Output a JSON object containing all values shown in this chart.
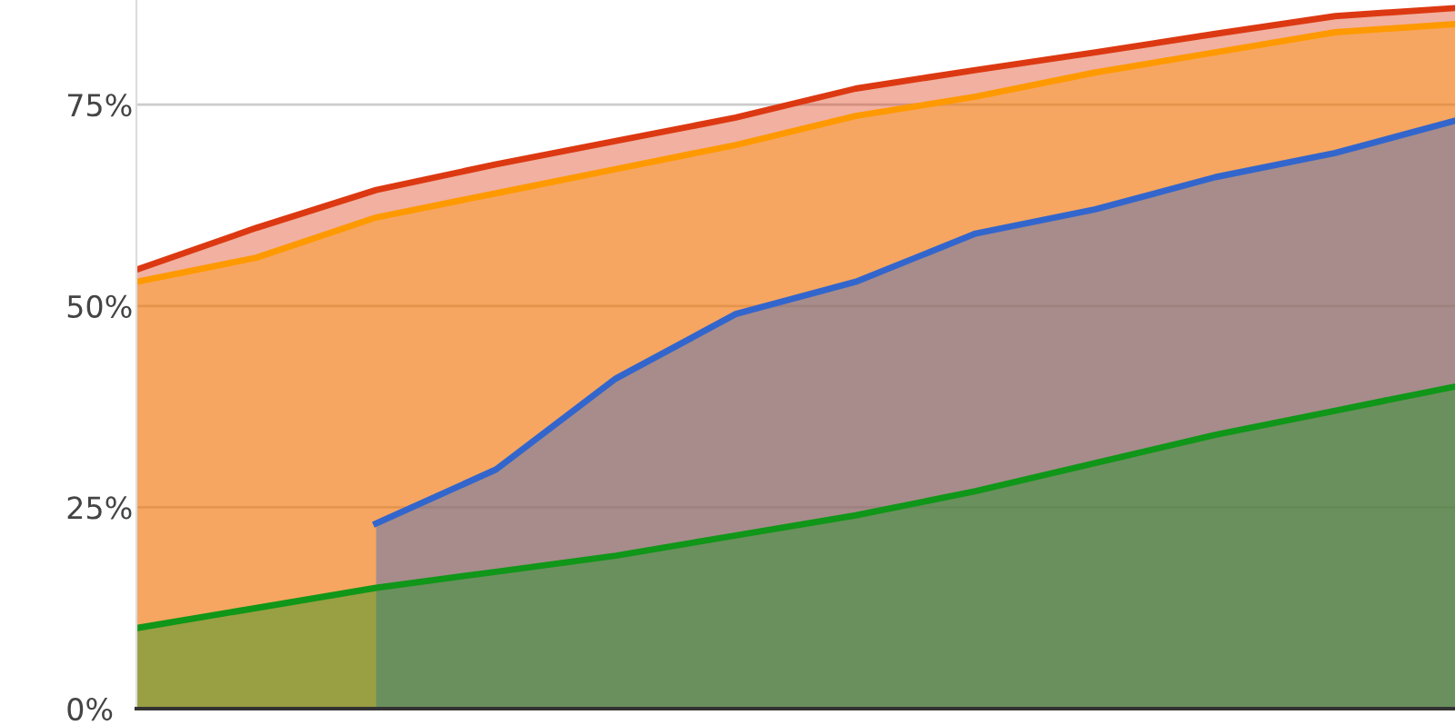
{
  "chart_data": {
    "type": "area",
    "categories": [
      null,
      null,
      null,
      null,
      null,
      null,
      null,
      null,
      null,
      null,
      null,
      null
    ],
    "series": [
      {
        "color": "#dc3912",
        "values": [
          54.5,
          59.7,
          64.4,
          67.6,
          70.5,
          73.4,
          77,
          79.3,
          81.5,
          83.8,
          86,
          87
        ]
      },
      {
        "color": "#ff9900",
        "values": [
          53,
          56,
          61,
          64,
          67,
          70,
          73.6,
          76,
          79,
          81.5,
          84,
          85
        ]
      },
      {
        "color": "#3366cc",
        "values": [
          null,
          null,
          23,
          29.7,
          41,
          49,
          53,
          59,
          62,
          66,
          69,
          73
        ]
      },
      {
        "color": "#109618",
        "values": [
          10,
          12.5,
          15,
          17,
          19,
          21.5,
          24,
          27,
          30.5,
          34,
          37,
          40
        ]
      }
    ],
    "ylim": [
      0,
      88
    ],
    "yticks": [
      {
        "value": 0,
        "label": "0%"
      },
      {
        "value": 25,
        "label": "25%"
      },
      {
        "value": 50,
        "label": "50%"
      },
      {
        "value": 75,
        "label": "75%"
      }
    ],
    "grid": "y",
    "legend": false
  }
}
